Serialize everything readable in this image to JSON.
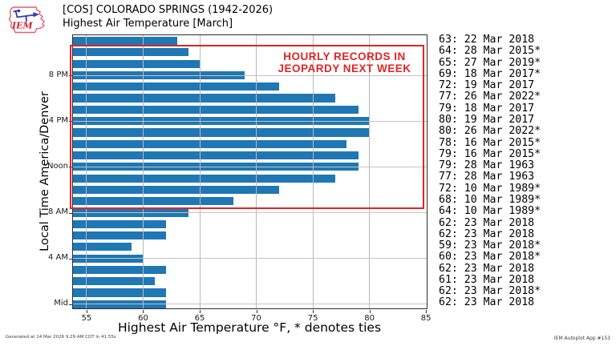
{
  "header": {
    "logo_text": "IEM",
    "title_line1": "[COS] COLORADO SPRINGS (1942-2026)",
    "title_line2": "Highest Air Temperature [March]"
  },
  "annotation": {
    "line1": "HOURLY RECORDS IN",
    "line2": "JEOPARDY NEXT WEEK",
    "color": "#e02424"
  },
  "colors": {
    "bar": "#1f77b4",
    "highlight_red": "#e02424",
    "grid": "#b9b9b9",
    "axis_spine": "#2e2e2e"
  },
  "chart_data": {
    "type": "bar",
    "orientation": "horizontal",
    "title": "[COS] COLORADO SPRINGS (1942-2026) Highest Air Temperature [March]",
    "xlabel": "Highest Air Temperature °F, * denotes ties",
    "ylabel": "Local Time America/Denver",
    "xlim": [
      53.8,
      85.2
    ],
    "xticks": [
      55,
      60,
      65,
      70,
      75,
      80,
      85
    ],
    "yticks": [
      {
        "row": 3,
        "label": "8 PM"
      },
      {
        "row": 7,
        "label": "4 PM"
      },
      {
        "row": 11,
        "label": "Noon"
      },
      {
        "row": 15,
        "label": "8 AM"
      },
      {
        "row": 19,
        "label": "4 AM"
      },
      {
        "row": 23,
        "label": "Mid"
      }
    ],
    "grid": true,
    "bars": [
      {
        "value": 63,
        "record": "22 Mar 2018",
        "tie": false
      },
      {
        "value": 64,
        "record": "28 Mar 2015",
        "tie": true
      },
      {
        "value": 65,
        "record": "27 Mar 2019",
        "tie": true
      },
      {
        "value": 69,
        "record": "18 Mar 2017",
        "tie": true
      },
      {
        "value": 72,
        "record": "19 Mar 2017",
        "tie": false
      },
      {
        "value": 77,
        "record": "26 Mar 2022",
        "tie": true
      },
      {
        "value": 79,
        "record": "18 Mar 2017",
        "tie": false
      },
      {
        "value": 80,
        "record": "19 Mar 2017",
        "tie": false
      },
      {
        "value": 80,
        "record": "26 Mar 2022",
        "tie": true
      },
      {
        "value": 78,
        "record": "16 Mar 2015",
        "tie": true
      },
      {
        "value": 79,
        "record": "16 Mar 2015",
        "tie": true
      },
      {
        "value": 79,
        "record": "28 Mar 1963",
        "tie": false
      },
      {
        "value": 77,
        "record": "28 Mar 1963",
        "tie": false
      },
      {
        "value": 72,
        "record": "10 Mar 1989",
        "tie": true
      },
      {
        "value": 68,
        "record": "10 Mar 1989",
        "tie": true
      },
      {
        "value": 64,
        "record": "10 Mar 1989",
        "tie": true
      },
      {
        "value": 62,
        "record": "23 Mar 2018",
        "tie": false
      },
      {
        "value": 62,
        "record": "23 Mar 2018",
        "tie": false
      },
      {
        "value": 59,
        "record": "23 Mar 2018",
        "tie": true
      },
      {
        "value": 60,
        "record": "23 Mar 2018",
        "tie": true
      },
      {
        "value": 62,
        "record": "23 Mar 2018",
        "tie": false
      },
      {
        "value": 61,
        "record": "23 Mar 2018",
        "tie": false
      },
      {
        "value": 62,
        "record": "23 Mar 2018",
        "tie": true
      },
      {
        "value": 62,
        "record": "23 Mar 2018",
        "tie": false
      }
    ],
    "highlight_box": {
      "first_row": 1,
      "last_row": 14
    }
  },
  "footer": {
    "left": "Generated at 14 Mar 2026 9:29 AM CDT in 41.55s",
    "right": "IEM Autoplot App #153"
  }
}
